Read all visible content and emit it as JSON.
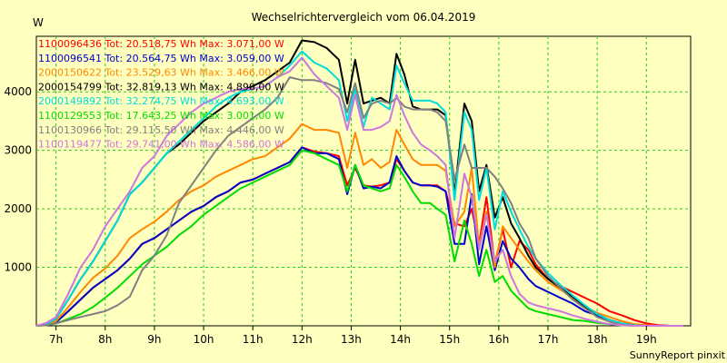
{
  "chart_data": {
    "type": "line",
    "title": "Wechselrichtervergleich vom 06.04.2019",
    "ylabel": "W",
    "xlabel": "",
    "footer": "SunnyReport pinxit",
    "ylim": [
      0,
      4950
    ],
    "xlim": [
      6.6,
      19.9
    ],
    "yticks": [
      1000,
      2000,
      3000,
      4000
    ],
    "xticks": [
      7,
      8,
      9,
      10,
      11,
      12,
      13,
      14,
      15,
      16,
      17,
      18,
      19
    ],
    "xtick_labels": [
      "7h",
      "8h",
      "9h",
      "10h",
      "11h",
      "12h",
      "13h",
      "14h",
      "15h",
      "16h",
      "17h",
      "18h",
      "19h"
    ],
    "grid": true,
    "legend_position": "top-left",
    "x": [
      6.6,
      6.8,
      7.0,
      7.25,
      7.5,
      7.75,
      8.0,
      8.25,
      8.5,
      8.75,
      9.0,
      9.25,
      9.5,
      9.75,
      10.0,
      10.25,
      10.5,
      10.75,
      11.0,
      11.25,
      11.5,
      11.75,
      12.0,
      12.25,
      12.5,
      12.75,
      12.92,
      13.08,
      13.25,
      13.42,
      13.6,
      13.78,
      13.92,
      14.08,
      14.25,
      14.42,
      14.6,
      14.75,
      14.92,
      15.1,
      15.3,
      15.45,
      15.6,
      15.75,
      15.92,
      16.08,
      16.25,
      16.42,
      16.6,
      16.75,
      17.0,
      17.25,
      17.5,
      17.75,
      18.0,
      18.25,
      18.5,
      18.75,
      19.0,
      19.25,
      19.5,
      19.75
    ],
    "series": [
      {
        "name": "1100096436",
        "legend": "1100096436 Tot: 20.518,75 Wh Max: 3.071,00 W",
        "color": "#ff0000",
        "values": [
          0,
          20,
          60,
          250,
          450,
          650,
          800,
          950,
          1150,
          1400,
          1500,
          1650,
          1800,
          1950,
          2050,
          2200,
          2300,
          2450,
          2500,
          2600,
          2700,
          2800,
          3050,
          2980,
          2950,
          2900,
          2400,
          2700,
          2400,
          2380,
          2400,
          2450,
          2850,
          2650,
          2450,
          2400,
          2400,
          2400,
          2300,
          1750,
          1700,
          2000,
          1400,
          2200,
          1050,
          1650,
          1000,
          1450,
          1300,
          1050,
          800,
          680,
          580,
          480,
          380,
          250,
          180,
          100,
          40,
          10,
          0,
          0
        ]
      },
      {
        "name": "1100096541",
        "legend": "1100096541 Tot: 20.564,75 Wh Max: 3.059,00 W",
        "color": "#0000cc",
        "values": [
          0,
          20,
          60,
          250,
          450,
          650,
          800,
          950,
          1150,
          1400,
          1500,
          1650,
          1800,
          1950,
          2050,
          2200,
          2300,
          2450,
          2500,
          2600,
          2700,
          2800,
          3050,
          2950,
          2950,
          2850,
          2250,
          2750,
          2350,
          2380,
          2350,
          2450,
          2900,
          2650,
          2450,
          2400,
          2400,
          2380,
          2300,
          1400,
          1400,
          2250,
          1050,
          1700,
          950,
          1450,
          1150,
          1000,
          800,
          680,
          580,
          480,
          380,
          250,
          180,
          100,
          40,
          10,
          0,
          0,
          0,
          0
        ]
      },
      {
        "name": "2000150622",
        "legend": "2000150622 Tot: 23.529,63 Wh Max: 3.466,00 W",
        "color": "#ff8800",
        "values": [
          0,
          20,
          80,
          320,
          580,
          820,
          980,
          1200,
          1500,
          1650,
          1780,
          1950,
          2150,
          2300,
          2400,
          2550,
          2650,
          2750,
          2850,
          2900,
          3050,
          3200,
          3450,
          3350,
          3350,
          3300,
          2700,
          3300,
          2750,
          2850,
          2700,
          2800,
          3350,
          3100,
          2850,
          2750,
          2750,
          2750,
          2650,
          1700,
          1950,
          2700,
          1350,
          1950,
          1000,
          1700,
          1500,
          1300,
          1100,
          950,
          750,
          620,
          480,
          330,
          220,
          150,
          80,
          30,
          10,
          0,
          0,
          0
        ]
      },
      {
        "name": "2000154799",
        "legend": "2000154799 Tot: 32.819,13 Wh Max: 4.890,00 W",
        "color": "#000000",
        "values": [
          0,
          30,
          120,
          450,
          800,
          1100,
          1450,
          1800,
          2250,
          2450,
          2700,
          2950,
          3100,
          3300,
          3500,
          3650,
          3800,
          4000,
          4100,
          4200,
          4350,
          4500,
          4880,
          4850,
          4750,
          4550,
          3800,
          4550,
          3800,
          3850,
          3900,
          3800,
          4650,
          4300,
          3750,
          3700,
          3700,
          3700,
          3600,
          2250,
          3800,
          3500,
          2300,
          2750,
          1850,
          2200,
          1750,
          1500,
          1200,
          1000,
          800,
          650,
          500,
          330,
          200,
          100,
          40,
          10,
          0,
          0,
          0,
          0
        ]
      },
      {
        "name": "2000149892",
        "legend": "2000149892 Tot: 32.274,75 Wh Max: 4.693,00 W",
        "color": "#00dddd",
        "values": [
          0,
          30,
          120,
          450,
          800,
          1100,
          1450,
          1800,
          2250,
          2450,
          2700,
          2950,
          3150,
          3350,
          3550,
          3750,
          3900,
          4000,
          4050,
          4100,
          4250,
          4450,
          4693,
          4500,
          4400,
          4200,
          3500,
          4050,
          3400,
          3900,
          3800,
          3700,
          4450,
          4150,
          3850,
          3850,
          3850,
          3800,
          3650,
          2150,
          3650,
          3350,
          2150,
          2700,
          1650,
          2300,
          1950,
          1650,
          1350,
          1150,
          900,
          700,
          520,
          350,
          200,
          100,
          40,
          10,
          0,
          0,
          0,
          0
        ]
      },
      {
        "name": "1100129553",
        "legend": "1100129553 Tot: 17.643,25 Wh Max: 3.001,00 W",
        "color": "#00dd00",
        "values": [
          0,
          10,
          40,
          120,
          200,
          320,
          480,
          650,
          850,
          1050,
          1200,
          1350,
          1550,
          1700,
          1900,
          2050,
          2200,
          2350,
          2450,
          2550,
          2650,
          2750,
          3001,
          2950,
          2850,
          2750,
          2300,
          2750,
          2400,
          2350,
          2300,
          2350,
          2750,
          2550,
          2300,
          2100,
          2100,
          2000,
          1900,
          1100,
          1800,
          1400,
          850,
          1300,
          750,
          850,
          600,
          450,
          300,
          250,
          200,
          150,
          100,
          80,
          50,
          30,
          10,
          0,
          0,
          0,
          0,
          0
        ]
      },
      {
        "name": "1100130966",
        "legend": "1100130966 Tot: 29.115,50 Wh Max: 4.446,00 W",
        "color": "#808080",
        "values": [
          0,
          10,
          40,
          100,
          150,
          200,
          250,
          350,
          500,
          950,
          1200,
          1550,
          2100,
          2400,
          2700,
          3000,
          3250,
          3400,
          3550,
          3700,
          3900,
          4250,
          4200,
          4200,
          4150,
          4050,
          3650,
          4150,
          3550,
          3800,
          3850,
          3800,
          3900,
          3750,
          3700,
          3700,
          3700,
          3650,
          3500,
          2500,
          3100,
          2700,
          2700,
          2700,
          2550,
          2350,
          2100,
          1750,
          1500,
          1150,
          850,
          650,
          450,
          300,
          150,
          70,
          20,
          0,
          0,
          0,
          0,
          0
        ]
      },
      {
        "name": "1100119477",
        "legend": "1100119477 Tot: 29.741,00 Wh Max: 4.586,00 W",
        "color": "#cc77dd",
        "values": [
          0,
          50,
          150,
          550,
          1000,
          1300,
          1700,
          2000,
          2300,
          2700,
          2900,
          3250,
          3450,
          3650,
          3800,
          3900,
          4000,
          4050,
          4050,
          4100,
          4250,
          4350,
          4586,
          4300,
          4100,
          3900,
          3350,
          3950,
          3350,
          3350,
          3400,
          3500,
          3950,
          3600,
          3300,
          3100,
          3000,
          2900,
          2750,
          1500,
          2600,
          2200,
          1300,
          1900,
          1100,
          1300,
          850,
          550,
          400,
          350,
          300,
          250,
          180,
          120,
          70,
          30,
          10,
          0,
          0,
          0,
          0,
          0
        ]
      }
    ]
  }
}
